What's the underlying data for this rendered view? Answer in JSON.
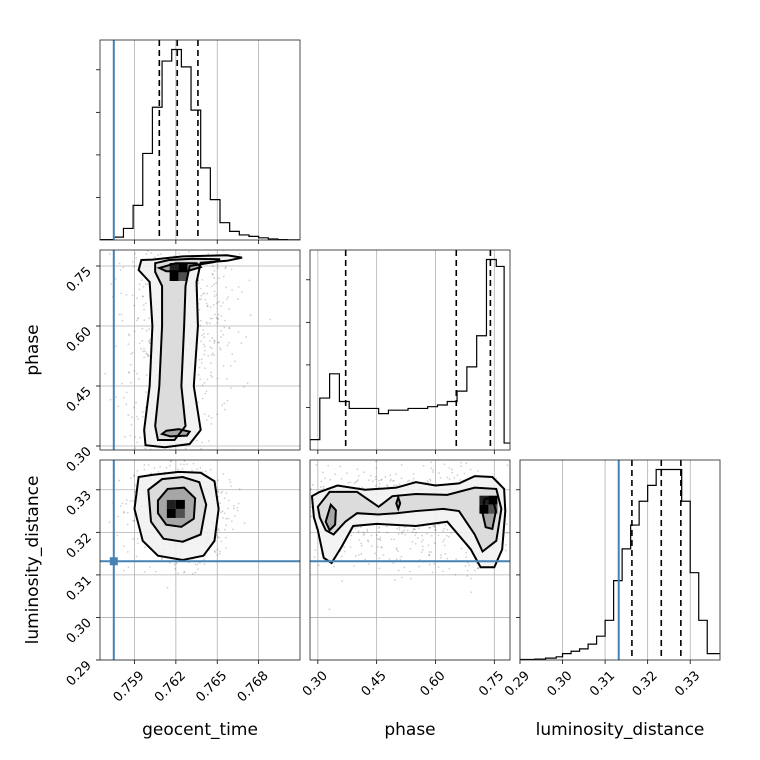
{
  "chart_data": {
    "type": "corner",
    "parameters": [
      "geocent_time",
      "phase",
      "luminosity_distance"
    ],
    "truth": {
      "geocent_time": 0.7575,
      "luminosity_distance": 0.3132
    },
    "truth_color": "#4682b4",
    "grid": true,
    "histograms": [
      {
        "parameter": "geocent_time",
        "xlim": [
          0.7565,
          0.771
        ],
        "xticks": [
          "0.759",
          "0.762",
          "0.765",
          "0.768"
        ],
        "xtick_values": [
          0.759,
          0.762,
          0.765,
          0.768
        ],
        "quantiles": [
          0.7608,
          0.7621,
          0.7636
        ],
        "bin_edges": [
          0.7565,
          0.7575,
          0.7582,
          0.7589,
          0.7596,
          0.7603,
          0.761,
          0.7617,
          0.7624,
          0.7631,
          0.7638,
          0.7645,
          0.7652,
          0.7659,
          0.7666,
          0.7673,
          0.768,
          0.7687,
          0.7694,
          0.7701,
          0.771
        ],
        "counts": [
          0.3,
          2,
          8,
          24,
          60,
          92,
          124,
          132,
          120,
          90,
          50,
          28,
          12,
          6,
          3.5,
          2.5,
          1.5,
          0.7,
          0.3,
          0.1
        ]
      },
      {
        "parameter": "phase",
        "xlim": [
          0.28,
          0.79
        ],
        "xticks": [
          "0.30",
          "0.45",
          "0.60",
          "0.75"
        ],
        "xtick_values": [
          0.3,
          0.45,
          0.6,
          0.75
        ],
        "quantiles": [
          0.371,
          0.653,
          0.74
        ],
        "bin_edges": [
          0.28,
          0.305,
          0.33,
          0.355,
          0.38,
          0.405,
          0.43,
          0.455,
          0.48,
          0.505,
          0.53,
          0.555,
          0.58,
          0.605,
          0.63,
          0.655,
          0.68,
          0.705,
          0.73,
          0.755,
          0.775,
          0.79
        ],
        "counts": [
          6,
          30,
          44,
          28,
          24,
          24,
          24,
          21,
          23,
          23,
          24,
          24,
          25,
          26,
          28,
          34,
          48,
          66,
          110,
          106,
          4
        ]
      },
      {
        "parameter": "luminosity_distance",
        "xlim": [
          0.29,
          0.337
        ],
        "xticks": [
          "0.29",
          "0.30",
          "0.31",
          "0.32",
          "0.33"
        ],
        "xtick_values": [
          0.29,
          0.3,
          0.31,
          0.32,
          0.33
        ],
        "quantiles": [
          0.3163,
          0.3232,
          0.3278
        ],
        "bin_edges": [
          0.29,
          0.2935,
          0.296,
          0.2985,
          0.3,
          0.302,
          0.304,
          0.306,
          0.308,
          0.31,
          0.312,
          0.314,
          0.316,
          0.318,
          0.32,
          0.322,
          0.324,
          0.326,
          0.328,
          0.33,
          0.332,
          0.334,
          0.337
        ],
        "counts": [
          0.3,
          0.6,
          1.2,
          2,
          4,
          5.5,
          7,
          10,
          15,
          25,
          50,
          70,
          85,
          100,
          110,
          120,
          120,
          120,
          100,
          55,
          25,
          4
        ]
      }
    ],
    "density_panels": [
      {
        "x": "geocent_time",
        "y": "phase",
        "xlim": [
          0.7565,
          0.771
        ],
        "ylim": [
          0.29,
          0.79
        ],
        "yticks": [
          "0.30",
          "0.45",
          "0.60",
          "0.75"
        ],
        "ytick_values": [
          0.3,
          0.45,
          0.6,
          0.75
        ],
        "peak": [
          0.7622,
          0.735
        ],
        "contours": [
          [
            [
              0.7595,
              0.765
            ],
            [
              0.7603,
              0.766
            ],
            [
              0.7625,
              0.774
            ],
            [
              0.7657,
              0.777
            ],
            [
              0.7668,
              0.771
            ],
            [
              0.7657,
              0.763
            ],
            [
              0.7638,
              0.758
            ],
            [
              0.7635,
              0.71
            ],
            [
              0.7636,
              0.6
            ],
            [
              0.7633,
              0.45
            ],
            [
              0.7638,
              0.34
            ],
            [
              0.763,
              0.305
            ],
            [
              0.7612,
              0.297
            ],
            [
              0.7598,
              0.302
            ],
            [
              0.7597,
              0.34
            ],
            [
              0.7601,
              0.45
            ],
            [
              0.7603,
              0.6
            ],
            [
              0.7601,
              0.71
            ],
            [
              0.7593,
              0.74
            ]
          ],
          [
            [
              0.7605,
              0.757
            ],
            [
              0.7615,
              0.765
            ],
            [
              0.7632,
              0.768
            ],
            [
              0.7652,
              0.767
            ],
            [
              0.7648,
              0.76
            ],
            [
              0.763,
              0.75
            ],
            [
              0.7627,
              0.7
            ],
            [
              0.7626,
              0.6
            ],
            [
              0.7624,
              0.45
            ],
            [
              0.7627,
              0.35
            ],
            [
              0.7619,
              0.315
            ],
            [
              0.7607,
              0.315
            ],
            [
              0.7605,
              0.35
            ],
            [
              0.7608,
              0.45
            ],
            [
              0.761,
              0.6
            ],
            [
              0.761,
              0.7
            ],
            [
              0.7605,
              0.735
            ]
          ],
          [
            [
              0.7608,
              0.745
            ],
            [
              0.762,
              0.757
            ],
            [
              0.7635,
              0.757
            ],
            [
              0.7638,
              0.747
            ],
            [
              0.7628,
              0.737
            ],
            [
              0.7613,
              0.737
            ]
          ],
          [
            [
              0.7613,
              0.338
            ],
            [
              0.7622,
              0.342
            ],
            [
              0.763,
              0.336
            ],
            [
              0.7628,
              0.326
            ],
            [
              0.7616,
              0.324
            ],
            [
              0.761,
              0.33
            ]
          ]
        ]
      },
      {
        "x": "geocent_time",
        "y": "luminosity_distance",
        "xlim": [
          0.7565,
          0.771
        ],
        "ylim": [
          0.29,
          0.337
        ],
        "yticks": [
          "0.29",
          "0.30",
          "0.31",
          "0.32",
          "0.33"
        ],
        "ytick_values": [
          0.29,
          0.3,
          0.31,
          0.32,
          0.33
        ],
        "xticks": [
          "0.759",
          "0.762",
          "0.765",
          "0.768"
        ],
        "peak": [
          0.762,
          0.3255
        ],
        "contours": [
          [
            [
              0.7593,
              0.333
            ],
            [
              0.7603,
              0.3335
            ],
            [
              0.7622,
              0.3342
            ],
            [
              0.7638,
              0.334
            ],
            [
              0.7648,
              0.332
            ],
            [
              0.7651,
              0.3255
            ],
            [
              0.7648,
              0.318
            ],
            [
              0.764,
              0.3145
            ],
            [
              0.7625,
              0.3135
            ],
            [
              0.7607,
              0.3145
            ],
            [
              0.7596,
              0.318
            ],
            [
              0.759,
              0.3255
            ]
          ],
          [
            [
              0.76,
              0.33
            ],
            [
              0.761,
              0.3325
            ],
            [
              0.7625,
              0.333
            ],
            [
              0.7637,
              0.3318
            ],
            [
              0.7642,
              0.3265
            ],
            [
              0.7638,
              0.3195
            ],
            [
              0.7625,
              0.3178
            ],
            [
              0.7611,
              0.3185
            ],
            [
              0.7602,
              0.3225
            ]
          ],
          [
            [
              0.7607,
              0.3275
            ],
            [
              0.7614,
              0.3302
            ],
            [
              0.7626,
              0.3305
            ],
            [
              0.7634,
              0.328
            ],
            [
              0.7633,
              0.3232
            ],
            [
              0.7624,
              0.3213
            ],
            [
              0.7613,
              0.3218
            ],
            [
              0.7607,
              0.3245
            ]
          ]
        ]
      },
      {
        "x": "phase",
        "y": "luminosity_distance",
        "xlim": [
          0.28,
          0.79
        ],
        "ylim": [
          0.29,
          0.337
        ],
        "xticks": [
          "0.30",
          "0.45",
          "0.60",
          "0.75"
        ],
        "peak": [
          0.735,
          0.3265
        ],
        "contours": [
          [
            [
              0.285,
              0.3285
            ],
            [
              0.305,
              0.3295
            ],
            [
              0.35,
              0.331
            ],
            [
              0.42,
              0.33
            ],
            [
              0.5,
              0.3305
            ],
            [
              0.55,
              0.3318
            ],
            [
              0.6,
              0.331
            ],
            [
              0.66,
              0.3315
            ],
            [
              0.7,
              0.3332
            ],
            [
              0.745,
              0.333
            ],
            [
              0.775,
              0.3302
            ],
            [
              0.778,
              0.325
            ],
            [
              0.77,
              0.316
            ],
            [
              0.75,
              0.3118
            ],
            [
              0.715,
              0.3118
            ],
            [
              0.69,
              0.316
            ],
            [
              0.63,
              0.3225
            ],
            [
              0.55,
              0.3215
            ],
            [
              0.45,
              0.322
            ],
            [
              0.39,
              0.3215
            ],
            [
              0.36,
              0.3165
            ],
            [
              0.335,
              0.3128
            ],
            [
              0.315,
              0.314
            ],
            [
              0.3,
              0.3205
            ],
            [
              0.29,
              0.3235
            ]
          ],
          [
            [
              0.3,
              0.326
            ],
            [
              0.33,
              0.3295
            ],
            [
              0.4,
              0.3295
            ],
            [
              0.455,
              0.326
            ],
            [
              0.49,
              0.3285
            ],
            [
              0.55,
              0.329
            ],
            [
              0.63,
              0.3288
            ],
            [
              0.7,
              0.3305
            ],
            [
              0.755,
              0.3302
            ],
            [
              0.768,
              0.3255
            ],
            [
              0.755,
              0.318
            ],
            [
              0.72,
              0.3155
            ],
            [
              0.7,
              0.3195
            ],
            [
              0.66,
              0.325
            ],
            [
              0.62,
              0.3255
            ],
            [
              0.55,
              0.325
            ],
            [
              0.5,
              0.3245
            ],
            [
              0.455,
              0.3242
            ],
            [
              0.4,
              0.3245
            ],
            [
              0.37,
              0.3225
            ],
            [
              0.34,
              0.3195
            ],
            [
              0.32,
              0.3205
            ],
            [
              0.305,
              0.3235
            ]
          ],
          [
            [
              0.725,
              0.3278
            ],
            [
              0.745,
              0.3282
            ],
            [
              0.754,
              0.325
            ],
            [
              0.745,
              0.3208
            ],
            [
              0.728,
              0.3212
            ],
            [
              0.72,
              0.3245
            ]
          ],
          [
            [
              0.32,
              0.3225
            ],
            [
              0.333,
              0.3265
            ],
            [
              0.346,
              0.3252
            ],
            [
              0.344,
              0.3218
            ],
            [
              0.33,
              0.3205
            ]
          ],
          [
            [
              0.5,
              0.3268
            ],
            [
              0.505,
              0.3282
            ],
            [
              0.51,
              0.3268
            ],
            [
              0.505,
              0.3255
            ]
          ]
        ]
      }
    ]
  }
}
